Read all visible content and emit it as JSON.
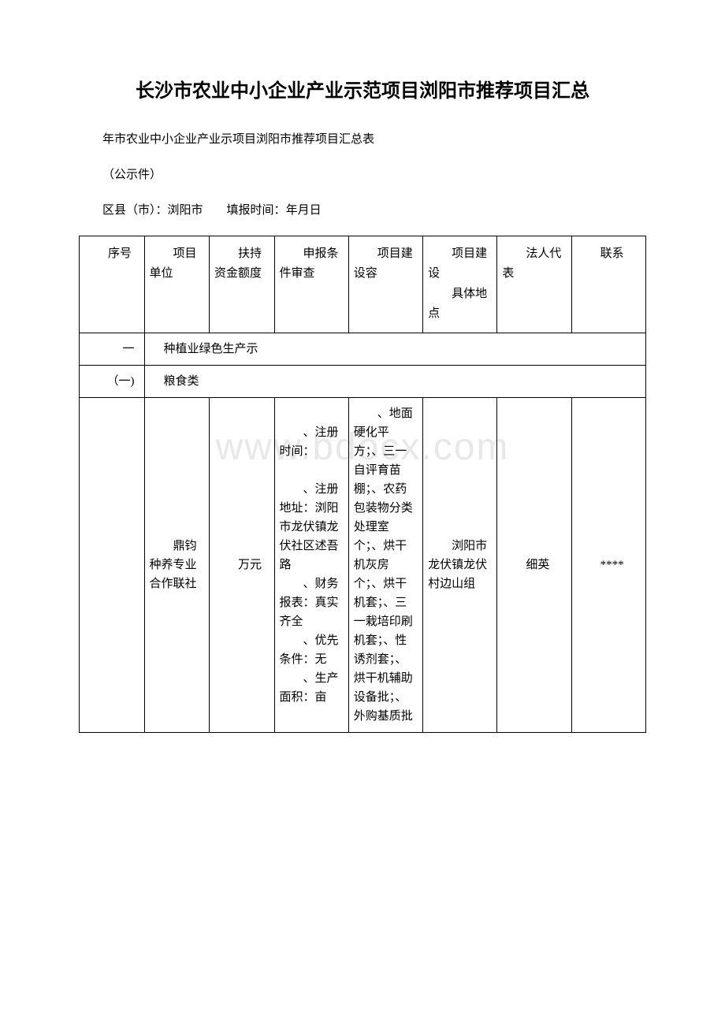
{
  "watermark": "www.bdocx.com",
  "title": "长沙市农业中小企业产业示范项目浏阳市推荐项目汇总",
  "subtitle": "年市农业中小企业产业示项目浏阳市推荐项目汇总表",
  "notice": "（公示件）",
  "meta": {
    "district_label": "区县（市）：",
    "district_value": "浏阳市",
    "fill_time_label": "填报时间：",
    "fill_time_value": "年月日"
  },
  "headers": {
    "col1": "　　序号",
    "col2": "　　项目单位",
    "col3": "　　扶持资金额度",
    "col4": "　　申报条件审查",
    "col5": "　　项目建设容",
    "col6": "　　项目建设\n　　具体地点",
    "col7": "　　法人代表",
    "col8": "　　联系"
  },
  "section1": {
    "num": "一",
    "label": "种植业绿色生产示"
  },
  "subsection1": {
    "num": "（一)",
    "label": "粮食类"
  },
  "row1": {
    "seq": "",
    "unit": "　　鼎钧种养专业合作联社",
    "amount": "　　万元",
    "conditions": "　　、注册时间：\n\n　　、注册地址：浏阳市龙伏镇龙伏社区述吾路\n　　、财务报表：真实齐全\n　　、优先条件：无\n　　、生产面积：亩",
    "content": "　　、地面硬化平方；、三一自评育苗棚；、农药包装物分类处理室个；、烘干机灰房个；、烘干机套；、三一栽培印刷机套；、性诱剂套；、烘干机辅助设备批；、外购基质批",
    "location": "　　浏阳市龙伏镇龙伏村边山组",
    "legal_rep": "　　细英",
    "contact": "　　****"
  },
  "colors": {
    "background": "#ffffff",
    "border": "#000000",
    "text": "#000000",
    "watermark": "#e8e8e8"
  }
}
